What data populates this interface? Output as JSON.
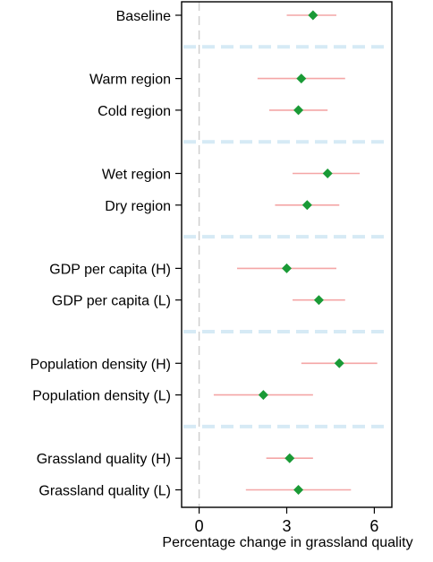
{
  "chart_data": {
    "type": "scatter",
    "subtype": "forest-plot",
    "title": "",
    "xlabel": "Percentage change in grassland quality",
    "ylabel": "",
    "xlim": [
      -0.6,
      6.6
    ],
    "xticks": [
      0,
      3,
      6
    ],
    "reference_line_x": 0,
    "grid": false,
    "legend": "none",
    "colors": {
      "point": "#1a9a36",
      "ci": "#f4a6a6",
      "separator": "#d6eaf5",
      "zero_line": "#cfcfcf",
      "frame": "#000000"
    },
    "groups": [
      {
        "rows": [
          {
            "label": "Baseline",
            "estimate": 3.9,
            "ci_low": 3.0,
            "ci_high": 4.7
          }
        ]
      },
      {
        "rows": [
          {
            "label": "Warm region",
            "estimate": 3.5,
            "ci_low": 2.0,
            "ci_high": 5.0
          },
          {
            "label": "Cold region",
            "estimate": 3.4,
            "ci_low": 2.4,
            "ci_high": 4.4
          }
        ]
      },
      {
        "rows": [
          {
            "label": "Wet region",
            "estimate": 4.4,
            "ci_low": 3.2,
            "ci_high": 5.5
          },
          {
            "label": "Dry region",
            "estimate": 3.7,
            "ci_low": 2.6,
            "ci_high": 4.8
          }
        ]
      },
      {
        "rows": [
          {
            "label": "GDP per capita (H)",
            "estimate": 3.0,
            "ci_low": 1.3,
            "ci_high": 4.7
          },
          {
            "label": "GDP per capita (L)",
            "estimate": 4.1,
            "ci_low": 3.2,
            "ci_high": 5.0
          }
        ]
      },
      {
        "rows": [
          {
            "label": "Population density (H)",
            "estimate": 4.8,
            "ci_low": 3.5,
            "ci_high": 6.1
          },
          {
            "label": "Population density (L)",
            "estimate": 2.2,
            "ci_low": 0.5,
            "ci_high": 3.9
          }
        ]
      },
      {
        "rows": [
          {
            "label": "Grassland quality (H)",
            "estimate": 3.1,
            "ci_low": 2.3,
            "ci_high": 3.9
          },
          {
            "label": "Grassland quality (L)",
            "estimate": 3.4,
            "ci_low": 1.6,
            "ci_high": 5.2
          }
        ]
      }
    ]
  }
}
